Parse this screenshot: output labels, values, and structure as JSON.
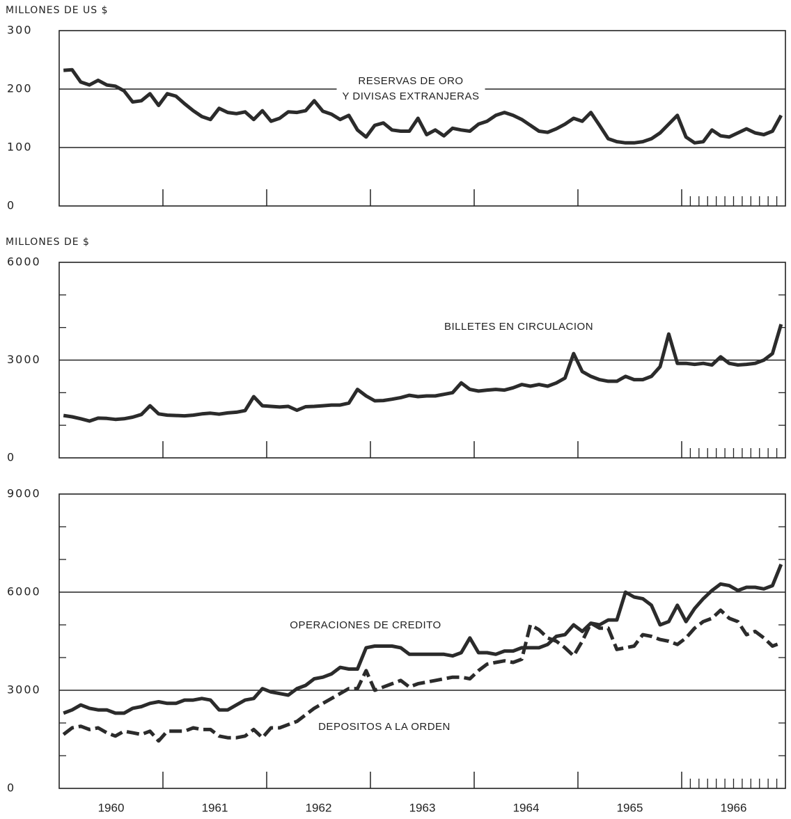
{
  "chart_data": [
    {
      "type": "line",
      "ylabel": "MILLONES DE US $",
      "ylim": [
        0,
        300
      ],
      "yticks": [
        0,
        100,
        200,
        300
      ],
      "grid": true,
      "series": [
        {
          "name": "RESERVAS DE ORO\nY DIVISAS EXTRANJERAS",
          "color": "#2b2b2b",
          "linestyle": "solid",
          "values": [
            232,
            233,
            212,
            207,
            215,
            207,
            205,
            197,
            178,
            180,
            192,
            172,
            192,
            188,
            175,
            163,
            153,
            148,
            167,
            160,
            158,
            161,
            148,
            163,
            145,
            150,
            161,
            160,
            163,
            180,
            162,
            157,
            148,
            155,
            130,
            118,
            138,
            142,
            130,
            128,
            128,
            150,
            122,
            130,
            120,
            133,
            130,
            128,
            140,
            145,
            155,
            160,
            155,
            148,
            138,
            128,
            126,
            132,
            140,
            150,
            145,
            160,
            138,
            115,
            110,
            108,
            108,
            110,
            115,
            125,
            140,
            155,
            118,
            108,
            110,
            130,
            120,
            118,
            125,
            132,
            125,
            122,
            128,
            155
          ]
        }
      ]
    },
    {
      "type": "line",
      "ylabel": "MILLONES DE $",
      "ylim": [
        0,
        6000
      ],
      "yticks": [
        0,
        3000,
        6000
      ],
      "yminorticks": [
        1000,
        2000,
        4000,
        5000
      ],
      "grid": true,
      "series": [
        {
          "name": "BILLETES EN CIRCULACION",
          "color": "#2b2b2b",
          "linestyle": "solid",
          "values": [
            1300,
            1260,
            1200,
            1130,
            1220,
            1210,
            1180,
            1200,
            1250,
            1330,
            1600,
            1350,
            1310,
            1300,
            1290,
            1310,
            1350,
            1370,
            1340,
            1380,
            1400,
            1450,
            1880,
            1600,
            1580,
            1560,
            1580,
            1460,
            1570,
            1580,
            1600,
            1620,
            1620,
            1680,
            2100,
            1900,
            1750,
            1760,
            1800,
            1850,
            1920,
            1880,
            1900,
            1900,
            1950,
            2000,
            2300,
            2100,
            2050,
            2080,
            2100,
            2080,
            2150,
            2250,
            2200,
            2250,
            2200,
            2300,
            2450,
            3200,
            2650,
            2500,
            2400,
            2350,
            2350,
            2500,
            2400,
            2400,
            2500,
            2800,
            3800,
            2900,
            2900,
            2870,
            2900,
            2850,
            3100,
            2900,
            2850,
            2870,
            2900,
            3000,
            3200,
            4100
          ]
        }
      ]
    },
    {
      "type": "line",
      "ylim": [
        0,
        9000
      ],
      "yticks": [
        0,
        3000,
        6000,
        9000
      ],
      "yminorticks": [
        1000,
        2000,
        4000,
        5000,
        7000,
        8000
      ],
      "grid": true,
      "categories": [
        null,
        null,
        null,
        null,
        null,
        null,
        "1960",
        null,
        null,
        null,
        null,
        null,
        null,
        null,
        null,
        null,
        null,
        null,
        "1961",
        null,
        null,
        null,
        null,
        null,
        null,
        null,
        null,
        null,
        null,
        null,
        "1962",
        null,
        null,
        null,
        null,
        null,
        null,
        null,
        null,
        null,
        null,
        null,
        "1963",
        null,
        null,
        null,
        null,
        null,
        null,
        null,
        null,
        null,
        null,
        null,
        "1964",
        null,
        null,
        null,
        null,
        null,
        null,
        null,
        null,
        null,
        null,
        null,
        "1965",
        null,
        null,
        null,
        null,
        null,
        null,
        null,
        null,
        null,
        null,
        null,
        "1966",
        null,
        null,
        null,
        null,
        null
      ],
      "series": [
        {
          "name": "OPERACIONES DE CREDITO",
          "color": "#2b2b2b",
          "linestyle": "solid",
          "values": [
            2300,
            2400,
            2550,
            2450,
            2400,
            2400,
            2300,
            2300,
            2450,
            2500,
            2600,
            2650,
            2600,
            2600,
            2700,
            2700,
            2750,
            2700,
            2400,
            2400,
            2550,
            2700,
            2750,
            3050,
            2950,
            2900,
            2850,
            3050,
            3150,
            3350,
            3400,
            3500,
            3700,
            3650,
            3650,
            4300,
            4350,
            4350,
            4350,
            4300,
            4100,
            4100,
            4100,
            4100,
            4100,
            4050,
            4150,
            4600,
            4150,
            4150,
            4100,
            4200,
            4200,
            4300,
            4300,
            4300,
            4400,
            4650,
            4700,
            5000,
            4800,
            5050,
            5000,
            5150,
            5150,
            6000,
            5850,
            5800,
            5600,
            5000,
            5100,
            5600,
            5100,
            5500,
            5800,
            6050,
            6250,
            6200,
            6050,
            6150,
            6150,
            6100,
            6200,
            6850
          ]
        },
        {
          "name": "DEPOSITOS A LA ORDEN",
          "color": "#2b2b2b",
          "linestyle": "dashed",
          "values": [
            1650,
            1850,
            1900,
            1800,
            1850,
            1700,
            1600,
            1750,
            1700,
            1650,
            1750,
            1450,
            1750,
            1750,
            1750,
            1850,
            1800,
            1800,
            1600,
            1550,
            1550,
            1600,
            1800,
            1550,
            1850,
            1850,
            1950,
            2050,
            2250,
            2450,
            2600,
            2750,
            2900,
            3050,
            3050,
            3600,
            3000,
            3100,
            3200,
            3300,
            3100,
            3200,
            3250,
            3300,
            3350,
            3400,
            3400,
            3350,
            3600,
            3800,
            3850,
            3900,
            3850,
            3950,
            5000,
            4850,
            4600,
            4500,
            4300,
            4050,
            4500,
            5050,
            4900,
            4900,
            4250,
            4300,
            4350,
            4700,
            4650,
            4550,
            4500,
            4400,
            4600,
            4900,
            5100,
            5200,
            5450,
            5200,
            5100,
            4700,
            4800,
            4600,
            4350,
            4450
          ]
        }
      ]
    }
  ]
}
